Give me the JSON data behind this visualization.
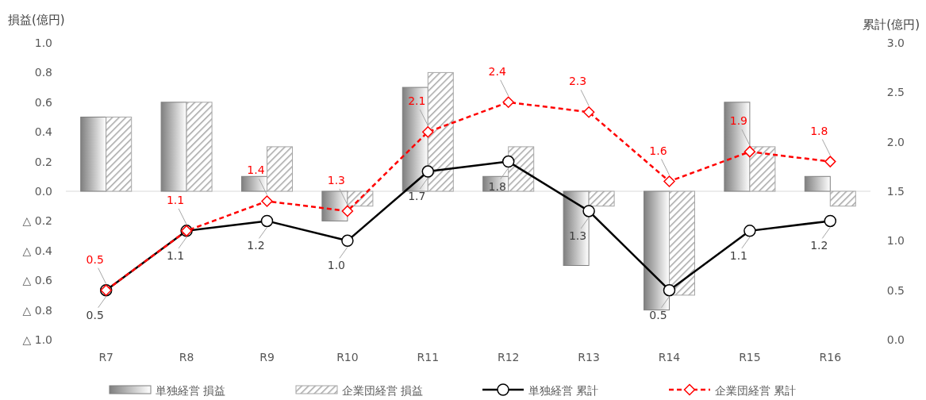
{
  "chart_data": {
    "type": "bar",
    "ylabel": "損益(億円)",
    "y2label": "累計(億円)",
    "legend": "bottom",
    "categories": [
      "R7",
      "R8",
      "R9",
      "R10",
      "R11",
      "R12",
      "R13",
      "R14",
      "R15",
      "R16"
    ],
    "ylim": [
      -1,
      1
    ],
    "yticks": [
      {
        "value": 1,
        "label": "1.0"
      },
      {
        "value": 0.8,
        "label": "0.8"
      },
      {
        "value": 0.6,
        "label": "0.6"
      },
      {
        "value": 0.4,
        "label": "0.4"
      },
      {
        "value": 0.2,
        "label": "0.2"
      },
      {
        "value": 0,
        "label": "0.0"
      },
      {
        "value": -0.2,
        "label": "△ 0.2"
      },
      {
        "value": -0.4,
        "label": "△ 0.4"
      },
      {
        "value": -0.6,
        "label": "△ 0.6"
      },
      {
        "value": -0.8,
        "label": "△ 0.8"
      },
      {
        "value": -1,
        "label": "△ 1.0"
      }
    ],
    "y2lim": [
      0,
      3
    ],
    "y2ticks": [
      {
        "value": 0,
        "label": "0.0"
      },
      {
        "value": 0.5,
        "label": "0.5"
      },
      {
        "value": 1,
        "label": "1.0"
      },
      {
        "value": 1.5,
        "label": "1.5"
      },
      {
        "value": 2,
        "label": "2.0"
      },
      {
        "value": 2.5,
        "label": "2.5"
      },
      {
        "value": 3,
        "label": "3.0"
      }
    ],
    "series": [
      {
        "name": "単独経営 損益",
        "color": "#7f7f7f",
        "values": [
          0.5,
          0.6,
          0.1,
          -0.2,
          0.7,
          0.1,
          -0.5,
          -0.8,
          0.6,
          0.1
        ]
      },
      {
        "name": "企業団経営 損益",
        "color": "#a6a6a6",
        "values": [
          0.5,
          0.6,
          0.3,
          -0.1,
          0.8,
          0.3,
          -0.1,
          -0.7,
          0.3,
          -0.1
        ]
      },
      {
        "name": "単独経営 累計",
        "type": "line",
        "axis": "y2",
        "color": "#000000",
        "marker": "circle",
        "line_style": "solid",
        "values": [
          0.5,
          1.1,
          1.2,
          1.0,
          1.7,
          1.8,
          1.3,
          0.5,
          1.1,
          1.2
        ],
        "value_labels": [
          "0.5",
          "1.1",
          "1.2",
          "1.0",
          "1.7",
          "1.8",
          "1.3",
          "0.5",
          "1.1",
          "1.2"
        ]
      },
      {
        "name": "企業団経営 累計",
        "type": "line",
        "axis": "y2",
        "color": "#ff0000",
        "marker": "diamond",
        "line_style": "dashed",
        "values": [
          0.5,
          1.1,
          1.4,
          1.3,
          2.1,
          2.4,
          2.3,
          1.6,
          1.9,
          1.8
        ],
        "value_labels": [
          "0.5",
          "1.1",
          "1.4",
          "1.3",
          "2.1",
          "2.4",
          "2.3",
          "1.6",
          "1.9",
          "1.8"
        ]
      }
    ]
  }
}
